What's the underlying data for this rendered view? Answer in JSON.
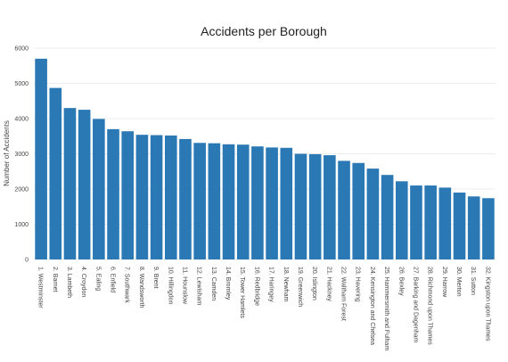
{
  "chart_data": {
    "type": "bar",
    "title": "Accidents per Borough",
    "xlabel": "",
    "ylabel": "Number of Accidents",
    "ylim": [
      0,
      6000
    ],
    "yticks": [
      0,
      1000,
      2000,
      3000,
      4000,
      5000,
      6000
    ],
    "grid": true,
    "bar_color": "#2a78b4",
    "categories": [
      "1. Westminster",
      "2. Barnet",
      "3. Lambeth",
      "4. Croydon",
      "5. Ealing",
      "6. Enfield",
      "7. Southwark",
      "8. Wandsworth",
      "9. Brent",
      "10. Hillingdon",
      "11. Hounslow",
      "12. Lewisham",
      "13. Camden",
      "14. Bromley",
      "15. Tower Hamlets",
      "16. Redbridge",
      "17. Haringey",
      "18. Newham",
      "19. Greenwich",
      "20. Islington",
      "21. Hackney",
      "22. Waltham Forest",
      "23. Havering",
      "24. Kensington and Chelsea",
      "25. Hammersmith and Fulham",
      "26. Bexley",
      "27. Barking and Dagenham",
      "28. Richmond upon Thames",
      "29. Harrow",
      "30. Merton",
      "31. Sutton",
      "32. Kingston upon Thames"
    ],
    "values": [
      5700,
      4870,
      4300,
      4250,
      3990,
      3700,
      3640,
      3540,
      3530,
      3520,
      3420,
      3310,
      3300,
      3270,
      3260,
      3210,
      3180,
      3170,
      3000,
      2990,
      2960,
      2800,
      2740,
      2580,
      2400,
      2220,
      2100,
      2100,
      2040,
      1900,
      1790,
      1740
    ]
  }
}
